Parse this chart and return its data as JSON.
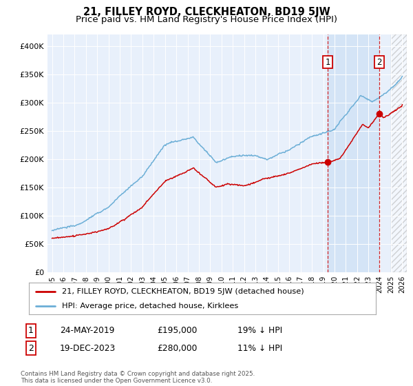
{
  "title": "21, FILLEY ROYD, CLECKHEATON, BD19 5JW",
  "subtitle": "Price paid vs. HM Land Registry's House Price Index (HPI)",
  "hpi_color": "#6baed6",
  "price_color": "#cc0000",
  "vline_color": "#cc0000",
  "shaded_region_color": "#ddeeff",
  "hatch_color": "#cccccc",
  "ylim": [
    0,
    420000
  ],
  "yticks": [
    0,
    50000,
    100000,
    150000,
    200000,
    250000,
    300000,
    350000,
    400000
  ],
  "ytick_labels": [
    "£0",
    "£50K",
    "£100K",
    "£150K",
    "£200K",
    "£250K",
    "£300K",
    "£350K",
    "£400K"
  ],
  "xlim_left": 1994.6,
  "xlim_right": 2026.4,
  "sale1_date_x": 2019.39,
  "sale1_price": 195000,
  "sale2_date_x": 2023.97,
  "sale2_price": 280000,
  "future_start": 2025.0,
  "legend_line1": "21, FILLEY ROYD, CLECKHEATON, BD19 5JW (detached house)",
  "legend_line2": "HPI: Average price, detached house, Kirklees",
  "table_row1": [
    "1",
    "24-MAY-2019",
    "£195,000",
    "19% ↓ HPI"
  ],
  "table_row2": [
    "2",
    "19-DEC-2023",
    "£280,000",
    "11% ↓ HPI"
  ],
  "footnote": "Contains HM Land Registry data © Crown copyright and database right 2025.\nThis data is licensed under the Open Government Licence v3.0."
}
